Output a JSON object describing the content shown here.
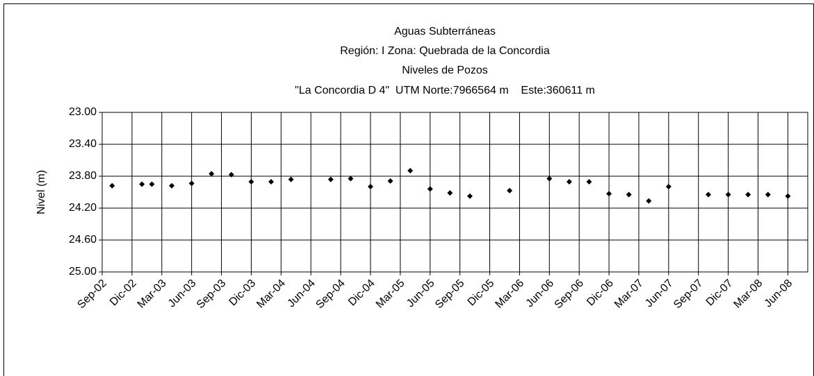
{
  "chart_data": {
    "type": "scatter",
    "title": [
      "Aguas Subterráneas",
      "Región: I  Zona: Quebrada de la Concordia",
      "Niveles de Pozos",
      "\"La Concordia D 4\"  UTM Norte:7966564 m    Este:360611 m"
    ],
    "y_label": "Nivel (m)",
    "x": [
      "2002-10",
      "2003-01",
      "2003-02",
      "2003-04",
      "2003-06",
      "2003-08",
      "2003-10",
      "2003-12",
      "2004-02",
      "2004-04",
      "2004-08",
      "2004-10",
      "2004-12",
      "2005-02",
      "2005-04",
      "2005-06",
      "2005-08",
      "2005-10",
      "2006-02",
      "2006-06",
      "2006-08",
      "2006-10",
      "2006-12",
      "2007-02",
      "2007-04",
      "2007-06",
      "2007-10",
      "2007-12",
      "2008-02",
      "2008-04",
      "2008-06"
    ],
    "series": [
      {
        "color": "#000000",
        "values": [
          23.92,
          23.9,
          23.9,
          23.92,
          23.89,
          23.77,
          23.78,
          23.87,
          23.87,
          23.84,
          23.84,
          23.83,
          23.93,
          23.86,
          23.73,
          23.96,
          24.01,
          24.05,
          23.98,
          23.83,
          23.87,
          23.87,
          24.02,
          24.03,
          24.11,
          23.93,
          24.03,
          24.03,
          24.03,
          24.03,
          24.05
        ]
      }
    ],
    "xlim": [
      "2002-09",
      "2008-08"
    ],
    "xticks": [
      {
        "value": "2002-09",
        "label": "Sep-02"
      },
      {
        "value": "2002-12",
        "label": "Dic-02"
      },
      {
        "value": "2003-03",
        "label": "Mar-03"
      },
      {
        "value": "2003-06",
        "label": "Jun-03"
      },
      {
        "value": "2003-09",
        "label": "Sep-03"
      },
      {
        "value": "2003-12",
        "label": "Dic-03"
      },
      {
        "value": "2004-03",
        "label": "Mar-04"
      },
      {
        "value": "2004-06",
        "label": "Jun-04"
      },
      {
        "value": "2004-09",
        "label": "Sep-04"
      },
      {
        "value": "2004-12",
        "label": "Dic-04"
      },
      {
        "value": "2005-03",
        "label": "Mar-05"
      },
      {
        "value": "2005-06",
        "label": "Jun-05"
      },
      {
        "value": "2005-09",
        "label": "Sep-05"
      },
      {
        "value": "2005-12",
        "label": "Dic-05"
      },
      {
        "value": "2006-03",
        "label": "Mar-06"
      },
      {
        "value": "2006-06",
        "label": "Jun-06"
      },
      {
        "value": "2006-09",
        "label": "Sep-06"
      },
      {
        "value": "2006-12",
        "label": "Dic-06"
      },
      {
        "value": "2007-03",
        "label": "Mar-07"
      },
      {
        "value": "2007-06",
        "label": "Jun-07"
      },
      {
        "value": "2007-09",
        "label": "Sep-07"
      },
      {
        "value": "2007-12",
        "label": "Dic-07"
      },
      {
        "value": "2008-03",
        "label": "Mar-08"
      },
      {
        "value": "2008-06",
        "label": "Jun-08"
      }
    ],
    "ylim": [
      23.0,
      25.0
    ],
    "y_inverted": true,
    "yticks": [
      {
        "value": 23.0,
        "label": "23.00"
      },
      {
        "value": 23.4,
        "label": "23.40"
      },
      {
        "value": 23.8,
        "label": "23.80"
      },
      {
        "value": 24.2,
        "label": "24.20"
      },
      {
        "value": 24.6,
        "label": "24.60"
      },
      {
        "value": 25.0,
        "label": "25.00"
      }
    ],
    "grid": true
  }
}
